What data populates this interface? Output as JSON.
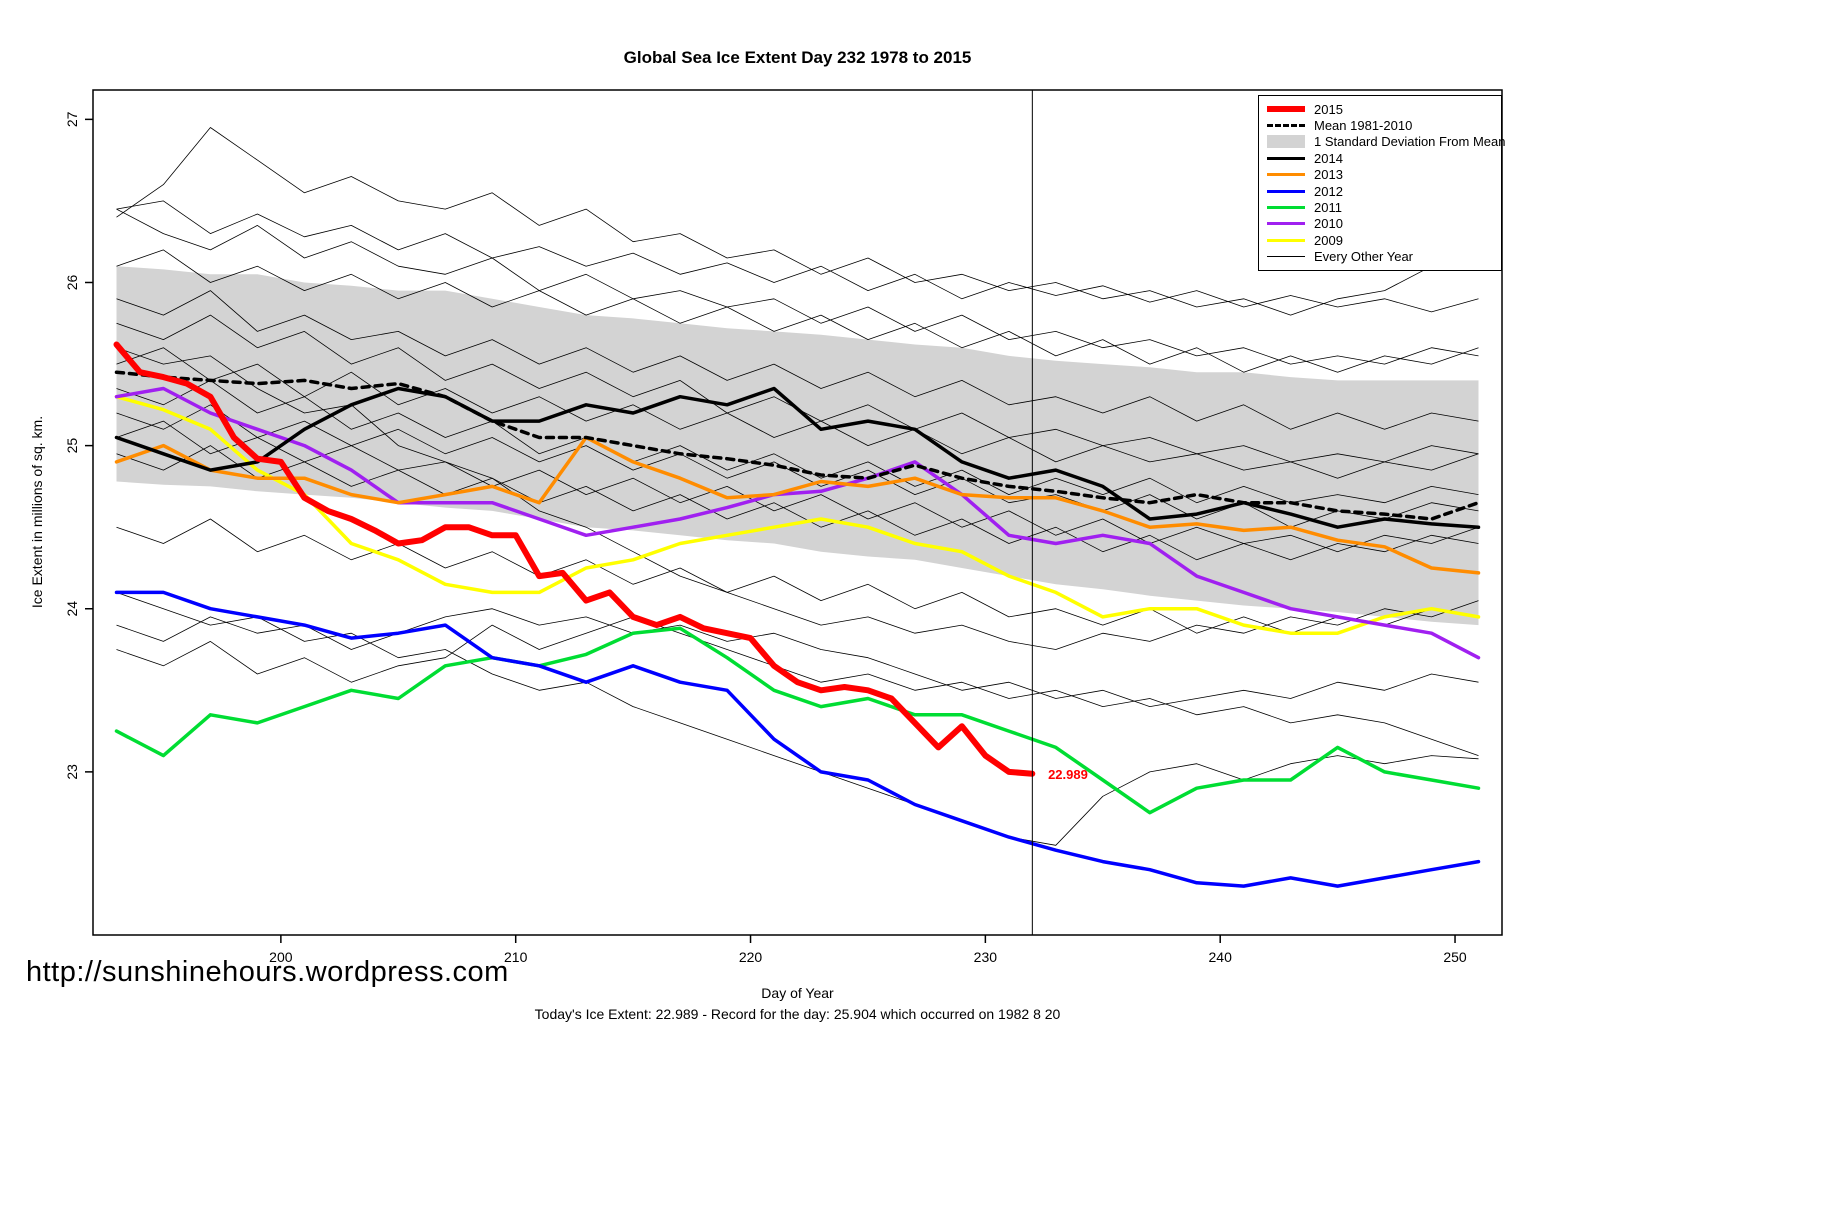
{
  "header": {
    "title": "Global Sea Ice Extent Day 232 1978 to 2015"
  },
  "footer": {
    "watermark": "http://sunshinehours.wordpress.com",
    "caption": "Today's Ice Extent: 22.989  - Record for the day: 25.904 which occurred on 1982 8 20"
  },
  "chart_data": {
    "type": "line",
    "title": "Global Sea Ice Extent Day 232 1978 to 2015",
    "xlabel": "Day of Year",
    "ylabel": "Ice Extent in millions of sq. km.",
    "xlim": [
      192,
      252
    ],
    "ylim": [
      22.0,
      27.18
    ],
    "xticks": [
      200,
      210,
      220,
      230,
      240,
      250
    ],
    "yticks": [
      23,
      24,
      25,
      26,
      27
    ],
    "grid": false,
    "legend_position": "top-right",
    "vline_x": 232,
    "annotation": {
      "text": "22.989",
      "x": 232.5,
      "y": 22.989,
      "color": "#ff0000"
    },
    "x2": [
      193,
      195,
      197,
      199,
      201,
      203,
      205,
      207,
      209,
      211,
      213,
      215,
      217,
      219,
      221,
      223,
      225,
      227,
      229,
      231,
      233,
      235,
      237,
      239,
      241,
      243,
      245,
      247,
      249,
      251
    ],
    "x2015": [
      193,
      194,
      195,
      196,
      197,
      198,
      199,
      200,
      201,
      202,
      203,
      204,
      205,
      206,
      207,
      208,
      209,
      210,
      211,
      212,
      213,
      214,
      215,
      216,
      217,
      218,
      219,
      220,
      221,
      222,
      223,
      224,
      225,
      226,
      227,
      228,
      229,
      230,
      231,
      232
    ],
    "band": {
      "name": "1 Standard Deviation From Mean",
      "color": "#d3d3d3",
      "x_ref": "x2",
      "upper": [
        26.1,
        26.08,
        26.05,
        26.05,
        26.0,
        25.98,
        25.95,
        25.95,
        25.9,
        25.85,
        25.8,
        25.78,
        25.75,
        25.72,
        25.7,
        25.68,
        25.65,
        25.62,
        25.6,
        25.55,
        25.52,
        25.5,
        25.48,
        25.45,
        25.45,
        25.42,
        25.4,
        25.4,
        25.4,
        25.4
      ],
      "lower": [
        24.78,
        24.76,
        24.75,
        24.72,
        24.7,
        24.68,
        24.65,
        24.62,
        24.6,
        24.55,
        24.5,
        24.48,
        24.45,
        24.42,
        24.4,
        24.35,
        24.32,
        24.3,
        24.25,
        24.2,
        24.15,
        24.12,
        24.08,
        24.05,
        24.02,
        24.0,
        23.98,
        23.95,
        23.92,
        23.9
      ]
    },
    "series": [
      {
        "name": "2009",
        "color": "#ffff00",
        "width": 3.5,
        "x_ref": "x2",
        "y": [
          25.3,
          25.22,
          25.1,
          24.85,
          24.7,
          24.4,
          24.3,
          24.15,
          24.1,
          24.1,
          24.25,
          24.3,
          24.4,
          24.45,
          24.5,
          24.55,
          24.5,
          24.4,
          24.35,
          24.2,
          24.1,
          23.95,
          24.0,
          24.0,
          23.9,
          23.85,
          23.85,
          23.95,
          24.0,
          23.95
        ]
      },
      {
        "name": "2010",
        "color": "#a020f0",
        "width": 3.5,
        "x_ref": "x2",
        "y": [
          25.3,
          25.35,
          25.2,
          25.1,
          25.0,
          24.85,
          24.65,
          24.65,
          24.65,
          24.55,
          24.45,
          24.5,
          24.55,
          24.62,
          24.7,
          24.72,
          24.8,
          24.9,
          24.7,
          24.45,
          24.4,
          24.45,
          24.4,
          24.2,
          24.1,
          24.0,
          23.95,
          23.9,
          23.85,
          23.7
        ]
      },
      {
        "name": "2011",
        "color": "#00dd33",
        "width": 3.5,
        "x_ref": "x2",
        "y": [
          23.25,
          23.1,
          23.35,
          23.3,
          23.4,
          23.5,
          23.45,
          23.65,
          23.7,
          23.65,
          23.72,
          23.85,
          23.88,
          23.7,
          23.5,
          23.4,
          23.45,
          23.35,
          23.35,
          23.25,
          23.15,
          22.95,
          22.75,
          22.9,
          22.95,
          22.95,
          23.15,
          23.0,
          22.95,
          22.9
        ]
      },
      {
        "name": "2012",
        "color": "#0000ff",
        "width": 3.5,
        "x_ref": "x2",
        "y": [
          24.1,
          24.1,
          24.0,
          23.95,
          23.9,
          23.82,
          23.85,
          23.9,
          23.7,
          23.65,
          23.55,
          23.65,
          23.55,
          23.5,
          23.2,
          23.0,
          22.95,
          22.8,
          22.7,
          22.6,
          22.52,
          22.45,
          22.4,
          22.32,
          22.3,
          22.35,
          22.3,
          22.35,
          22.4,
          22.45
        ]
      },
      {
        "name": "2013",
        "color": "#ff8c00",
        "width": 3.5,
        "x_ref": "x2",
        "y": [
          24.9,
          25.0,
          24.85,
          24.8,
          24.8,
          24.7,
          24.65,
          24.7,
          24.75,
          24.65,
          25.05,
          24.9,
          24.8,
          24.68,
          24.7,
          24.78,
          24.75,
          24.8,
          24.7,
          24.68,
          24.68,
          24.6,
          24.5,
          24.52,
          24.48,
          24.5,
          24.42,
          24.38,
          24.25,
          24.22
        ]
      },
      {
        "name": "2014",
        "color": "#000000",
        "width": 3.5,
        "x_ref": "x2",
        "y": [
          25.05,
          24.95,
          24.85,
          24.9,
          25.1,
          25.25,
          25.35,
          25.3,
          25.15,
          25.15,
          25.25,
          25.2,
          25.3,
          25.25,
          25.35,
          25.1,
          25.15,
          25.1,
          24.9,
          24.8,
          24.85,
          24.75,
          24.55,
          24.58,
          24.65,
          24.58,
          24.5,
          24.55,
          24.52,
          24.5
        ]
      },
      {
        "name": "Mean 1981-2010",
        "color": "#000000",
        "width": 3.5,
        "dash": "7 6",
        "x_ref": "x2",
        "y": [
          25.45,
          25.42,
          25.4,
          25.38,
          25.4,
          25.35,
          25.38,
          25.3,
          25.15,
          25.05,
          25.05,
          25.0,
          24.95,
          24.92,
          24.88,
          24.82,
          24.8,
          24.88,
          24.8,
          24.75,
          24.72,
          24.68,
          24.65,
          24.7,
          24.65,
          24.65,
          24.6,
          24.58,
          24.55,
          24.65
        ]
      },
      {
        "name": "2015",
        "color": "#ff0000",
        "width": 6,
        "x_ref": "x2015",
        "y": [
          25.62,
          25.45,
          25.42,
          25.38,
          25.3,
          25.05,
          24.92,
          24.9,
          24.68,
          24.6,
          24.55,
          24.48,
          24.4,
          24.42,
          24.5,
          24.5,
          24.45,
          24.45,
          24.2,
          24.22,
          24.05,
          24.1,
          23.95,
          23.9,
          23.95,
          23.88,
          23.85,
          23.82,
          23.65,
          23.55,
          23.5,
          23.52,
          23.5,
          23.45,
          23.3,
          23.15,
          23.28,
          23.1,
          23.0,
          22.989
        ]
      }
    ],
    "background_years": {
      "name": "Every Other Year",
      "color": "#000000",
      "width": 0.8,
      "x_ref": "x2",
      "lines": [
        [
          26.45,
          26.5,
          26.3,
          26.42,
          26.28,
          26.35,
          26.2,
          26.3,
          26.15,
          26.22,
          26.1,
          26.18,
          26.05,
          26.12,
          26.0,
          26.1,
          25.95,
          26.05,
          25.9,
          26.0,
          25.92,
          25.98,
          25.88,
          25.95,
          25.85,
          25.92,
          25.85,
          25.9,
          25.82,
          25.9
        ],
        [
          26.4,
          26.6,
          26.95,
          26.75,
          26.55,
          26.65,
          26.5,
          26.45,
          26.55,
          26.35,
          26.45,
          26.25,
          26.3,
          26.15,
          26.2,
          26.05,
          26.15,
          26.0,
          26.05,
          25.95,
          26.0,
          25.9,
          25.95,
          25.85,
          25.9,
          25.8,
          25.9,
          25.95,
          26.1,
          26.25
        ],
        [
          26.45,
          26.3,
          26.2,
          26.35,
          26.15,
          26.25,
          26.1,
          26.05,
          26.15,
          25.95,
          26.05,
          25.9,
          25.95,
          25.85,
          25.9,
          25.75,
          25.85,
          25.7,
          25.8,
          25.65,
          25.7,
          25.6,
          25.65,
          25.55,
          25.6,
          25.5,
          25.55,
          25.5,
          25.6,
          25.55
        ],
        [
          25.9,
          25.8,
          25.95,
          25.7,
          25.8,
          25.65,
          25.7,
          25.55,
          25.65,
          25.5,
          25.6,
          25.45,
          25.55,
          25.4,
          25.5,
          25.35,
          25.45,
          25.3,
          25.4,
          25.25,
          25.3,
          25.2,
          25.3,
          25.15,
          25.25,
          25.1,
          25.2,
          25.1,
          25.2,
          25.15
        ],
        [
          25.5,
          25.6,
          25.4,
          25.5,
          25.3,
          25.45,
          25.25,
          25.35,
          25.2,
          25.3,
          25.15,
          25.25,
          25.1,
          25.2,
          25.05,
          25.15,
          25.0,
          25.1,
          24.95,
          25.05,
          24.9,
          25.0,
          24.9,
          24.95,
          24.85,
          24.9,
          24.8,
          24.9,
          24.85,
          24.95
        ],
        [
          25.2,
          25.1,
          25.25,
          25.05,
          25.15,
          25.0,
          25.1,
          24.95,
          25.05,
          24.9,
          25.0,
          24.85,
          24.95,
          24.8,
          24.9,
          24.75,
          24.85,
          24.7,
          24.8,
          24.65,
          24.7,
          24.6,
          24.7,
          24.55,
          24.65,
          24.5,
          24.6,
          24.55,
          24.65,
          24.6
        ],
        [
          24.95,
          24.85,
          25.0,
          24.8,
          24.9,
          24.75,
          24.85,
          24.7,
          24.8,
          24.65,
          24.75,
          24.6,
          24.7,
          24.55,
          24.65,
          24.5,
          24.6,
          24.45,
          24.55,
          24.4,
          24.5,
          24.35,
          24.45,
          24.3,
          24.4,
          24.3,
          24.4,
          24.35,
          24.45,
          24.4
        ],
        [
          24.5,
          24.4,
          24.55,
          24.35,
          24.45,
          24.3,
          24.4,
          24.25,
          24.35,
          24.2,
          24.3,
          24.15,
          24.25,
          24.1,
          24.2,
          24.05,
          24.15,
          24.0,
          24.1,
          23.95,
          24.0,
          23.9,
          24.0,
          23.85,
          23.95,
          23.85,
          23.95,
          23.9,
          24.0,
          23.95
        ],
        [
          23.75,
          23.65,
          23.8,
          23.6,
          23.7,
          23.55,
          23.65,
          23.7,
          23.9,
          23.75,
          23.85,
          23.95,
          23.85,
          23.75,
          23.65,
          23.55,
          23.6,
          23.5,
          23.55,
          23.45,
          23.5,
          23.4,
          23.45,
          23.35,
          23.4,
          23.3,
          23.35,
          23.3,
          23.2,
          23.1
        ],
        [
          24.1,
          24.0,
          23.9,
          23.95,
          23.8,
          23.85,
          23.7,
          23.75,
          23.6,
          23.5,
          23.55,
          23.4,
          23.3,
          23.2,
          23.1,
          23.0,
          22.9,
          22.8,
          22.7,
          22.6,
          22.55,
          22.85,
          23.0,
          23.05,
          22.95,
          23.05,
          23.1,
          23.05,
          23.1,
          23.08
        ],
        [
          23.9,
          23.8,
          23.95,
          23.85,
          23.9,
          23.75,
          23.85,
          23.95,
          24.0,
          23.9,
          23.95,
          23.85,
          23.9,
          23.8,
          23.85,
          23.75,
          23.7,
          23.6,
          23.5,
          23.55,
          23.45,
          23.5,
          23.4,
          23.45,
          23.5,
          23.45,
          23.55,
          23.5,
          23.6,
          23.55
        ],
        [
          25.6,
          25.5,
          25.55,
          25.35,
          25.2,
          25.25,
          25.0,
          24.9,
          24.8,
          24.6,
          24.5,
          24.35,
          24.2,
          24.1,
          24.0,
          23.9,
          23.95,
          23.85,
          23.9,
          23.8,
          23.75,
          23.85,
          23.8,
          23.9,
          23.85,
          23.95,
          23.9,
          24.0,
          23.95,
          24.05
        ],
        [
          26.1,
          26.2,
          26.0,
          26.1,
          25.95,
          26.05,
          25.9,
          26.0,
          25.85,
          25.95,
          25.8,
          25.9,
          25.75,
          25.85,
          25.7,
          25.8,
          25.65,
          25.75,
          25.6,
          25.7,
          25.55,
          25.65,
          25.5,
          25.6,
          25.45,
          25.55,
          25.45,
          25.55,
          25.5,
          25.6
        ],
        [
          25.75,
          25.65,
          25.8,
          25.6,
          25.7,
          25.5,
          25.6,
          25.4,
          25.5,
          25.35,
          25.45,
          25.3,
          25.4,
          25.2,
          25.3,
          25.15,
          25.25,
          25.1,
          25.2,
          25.05,
          25.1,
          25.0,
          25.05,
          24.95,
          25.0,
          24.9,
          24.95,
          24.9,
          25.0,
          24.95
        ],
        [
          25.35,
          25.25,
          25.4,
          25.2,
          25.3,
          25.1,
          25.2,
          25.05,
          25.15,
          24.95,
          25.05,
          24.9,
          25.0,
          24.85,
          24.95,
          24.8,
          24.9,
          24.75,
          24.85,
          24.7,
          24.8,
          24.7,
          24.8,
          24.65,
          24.75,
          24.65,
          24.7,
          24.65,
          24.75,
          24.7
        ],
        [
          25.05,
          25.15,
          24.95,
          25.05,
          24.9,
          25.0,
          24.85,
          24.9,
          24.75,
          24.85,
          24.7,
          24.8,
          24.65,
          24.75,
          24.6,
          24.7,
          24.55,
          24.65,
          24.5,
          24.6,
          24.45,
          24.55,
          24.4,
          24.5,
          24.4,
          24.45,
          24.35,
          24.45,
          24.4,
          24.5
        ]
      ]
    },
    "legend": [
      {
        "label": "2015",
        "swatch": "line",
        "color": "#ff0000",
        "width": 6
      },
      {
        "label": "Mean 1981-2010",
        "swatch": "dashed-line",
        "color": "#000000",
        "width": 3
      },
      {
        "label": "1 Standard Deviation From Mean",
        "swatch": "band",
        "color": "#d3d3d3"
      },
      {
        "label": "2014",
        "swatch": "line",
        "color": "#000000",
        "width": 3
      },
      {
        "label": "2013",
        "swatch": "line",
        "color": "#ff8c00",
        "width": 3
      },
      {
        "label": "2012",
        "swatch": "line",
        "color": "#0000ff",
        "width": 3
      },
      {
        "label": "2011",
        "swatch": "line",
        "color": "#00dd33",
        "width": 3
      },
      {
        "label": "2010",
        "swatch": "line",
        "color": "#a020f0",
        "width": 3
      },
      {
        "label": "2009",
        "swatch": "line",
        "color": "#ffff00",
        "width": 3
      },
      {
        "label": "Every Other Year",
        "swatch": "line",
        "color": "#000000",
        "width": 1
      }
    ]
  }
}
